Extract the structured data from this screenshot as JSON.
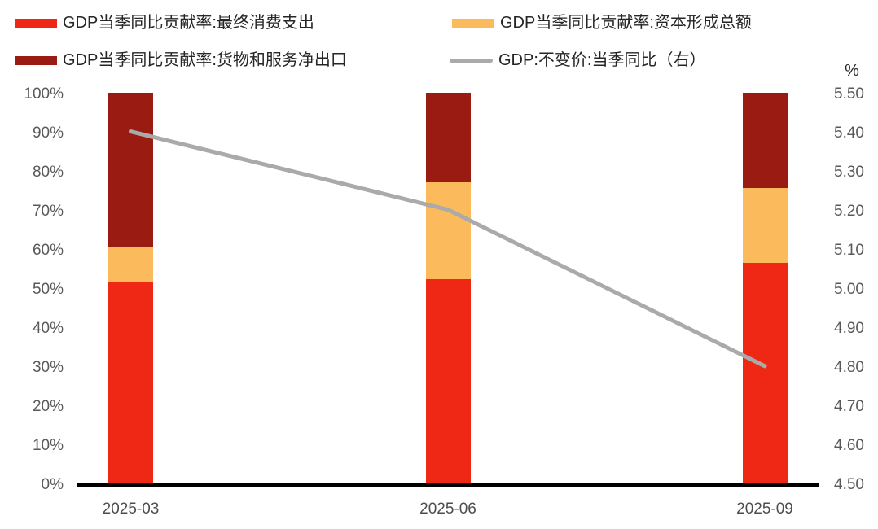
{
  "legend": {
    "items": [
      {
        "label": "GDP当季同比贡献率:最终消费支出",
        "swatch": "bar",
        "color": "#EE2815"
      },
      {
        "label": "GDP当季同比贡献率:资本形成总额",
        "swatch": "bar",
        "color": "#FBBA5C"
      },
      {
        "label": "GDP当季同比贡献率:货物和服务净出口",
        "swatch": "bar",
        "color": "#9A1B12"
      },
      {
        "label": "GDP:不变价:当季同比（右）",
        "swatch": "line",
        "color": "#AAAAAA"
      }
    ]
  },
  "right_axis_unit_label": "%",
  "colors": {
    "consumption_red": "#EE2815",
    "capital_orange": "#FBBA5C",
    "net_exports_dark_red": "#9A1B12",
    "gdp_line_gray": "#AAAAAA",
    "axis_line": "#000000",
    "tick_label": "#595959",
    "x_label": "#4d4d4d",
    "legend_text": "#262626"
  },
  "chart_data": {
    "type": "combo: stacked-bar + line",
    "categories": [
      "2025-03",
      "2025-06",
      "2025-09"
    ],
    "series": [
      {
        "name": "GDP当季同比贡献率:最终消费支出",
        "chart": "bar",
        "axis": "left",
        "color": "#EE2815",
        "values": [
          51.7,
          52.3,
          56.4
        ]
      },
      {
        "name": "GDP当季同比贡献率:资本形成总额",
        "chart": "bar",
        "axis": "left",
        "color": "#FBBA5C",
        "values": [
          8.9,
          24.7,
          19.2
        ]
      },
      {
        "name": "GDP当季同比贡献率:货物和服务净出口",
        "chart": "bar",
        "axis": "left",
        "color": "#9A1B12",
        "values": [
          39.4,
          23.0,
          24.4
        ]
      },
      {
        "name": "GDP:不变价:当季同比（右）",
        "chart": "line",
        "axis": "right",
        "color": "#AAAAAA",
        "values": [
          5.4,
          5.2,
          4.8
        ]
      }
    ],
    "stack_order_bottom_to_top": [
      "最终消费支出",
      "资本形成总额",
      "货物和服务净出口"
    ],
    "left_axis": {
      "min": 0,
      "max": 100,
      "step": 10,
      "format": "percent",
      "tick_labels": [
        "0%",
        "10%",
        "20%",
        "30%",
        "40%",
        "50%",
        "60%",
        "70%",
        "80%",
        "90%",
        "100%"
      ]
    },
    "right_axis": {
      "min": 4.5,
      "max": 5.5,
      "step": 0.1,
      "unit": "%",
      "tick_labels": [
        "4.50",
        "4.60",
        "4.70",
        "4.80",
        "4.90",
        "5.00",
        "5.10",
        "5.20",
        "5.30",
        "5.40",
        "5.50"
      ]
    },
    "grid": false,
    "legend_position": "top",
    "title": ""
  }
}
